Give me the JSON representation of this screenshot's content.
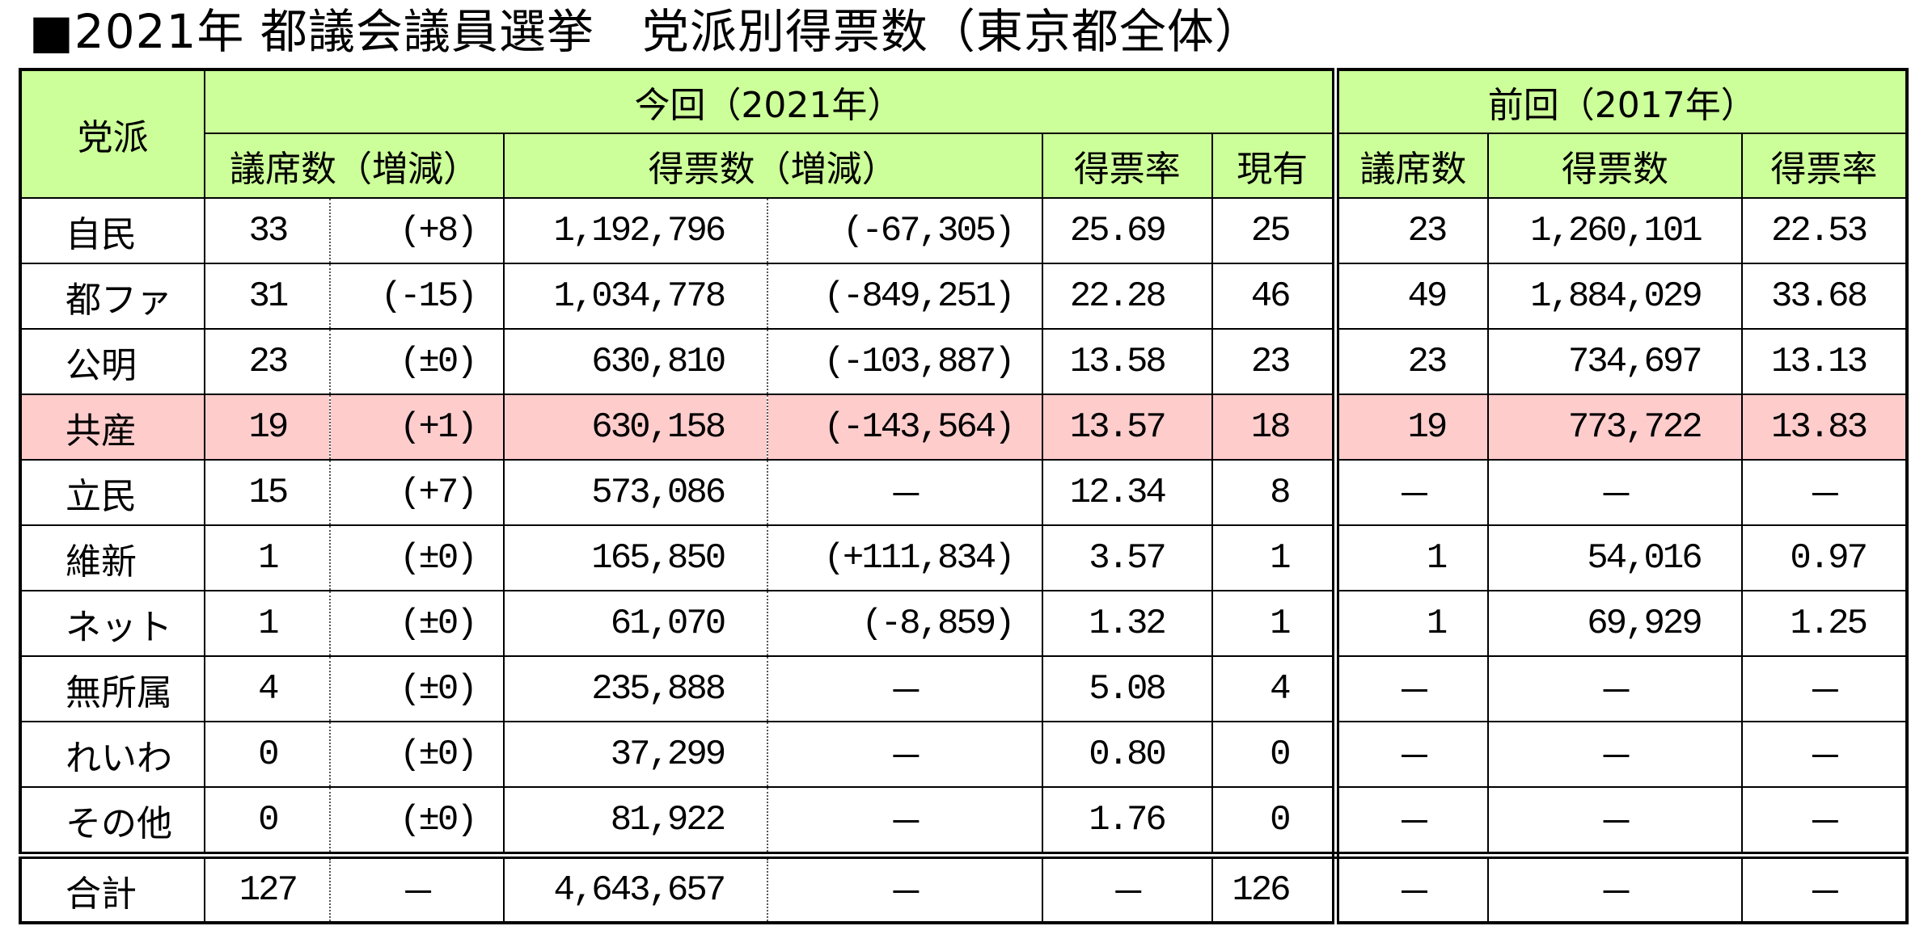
{
  "title": "■2021年 都議会議員選挙　党派別得票数（東京都全体）",
  "header": {
    "party": "党派",
    "current": "今回（2021年）",
    "previous": "前回（2017年）",
    "seats_change": "議席数（増減）",
    "votes_change": "得票数（増減）",
    "vote_share": "得票率",
    "incumbent": "現有",
    "prev_seats": "議席数",
    "prev_votes": "得票数",
    "prev_share": "得票率"
  },
  "colors": {
    "header_bg": "#ccff99",
    "highlight_bg": "#ffcccc",
    "border": "#000000"
  },
  "rows": [
    {
      "party": "自民",
      "seats": "33",
      "seats_change": "(+8)",
      "votes": "1,192,796",
      "votes_change": "(-67,305)",
      "share": "25.69",
      "incumbent": "25",
      "prev_seats": "23",
      "prev_votes": "1,260,101",
      "prev_share": "22.53",
      "highlight": false
    },
    {
      "party": "都ファ",
      "seats": "31",
      "seats_change": "(-15)",
      "votes": "1,034,778",
      "votes_change": "(-849,251)",
      "share": "22.28",
      "incumbent": "46",
      "prev_seats": "49",
      "prev_votes": "1,884,029",
      "prev_share": "33.68",
      "highlight": false
    },
    {
      "party": "公明",
      "seats": "23",
      "seats_change": "(±0)",
      "votes": "630,810",
      "votes_change": "(-103,887)",
      "share": "13.58",
      "incumbent": "23",
      "prev_seats": "23",
      "prev_votes": "734,697",
      "prev_share": "13.13",
      "highlight": false
    },
    {
      "party": "共産",
      "seats": "19",
      "seats_change": "(+1)",
      "votes": "630,158",
      "votes_change": "(-143,564)",
      "share": "13.57",
      "incumbent": "18",
      "prev_seats": "19",
      "prev_votes": "773,722",
      "prev_share": "13.83",
      "highlight": true
    },
    {
      "party": "立民",
      "seats": "15",
      "seats_change": "(+7)",
      "votes": "573,086",
      "votes_change": "－",
      "share": "12.34",
      "incumbent": "8",
      "prev_seats": "－",
      "prev_votes": "－",
      "prev_share": "－",
      "highlight": false
    },
    {
      "party": "維新",
      "seats": "1",
      "seats_change": "(±0)",
      "votes": "165,850",
      "votes_change": "(+111,834)",
      "share": "3.57",
      "incumbent": "1",
      "prev_seats": "1",
      "prev_votes": "54,016",
      "prev_share": "0.97",
      "highlight": false
    },
    {
      "party": "ネット",
      "seats": "1",
      "seats_change": "(±0)",
      "votes": "61,070",
      "votes_change": "(-8,859)",
      "share": "1.32",
      "incumbent": "1",
      "prev_seats": "1",
      "prev_votes": "69,929",
      "prev_share": "1.25",
      "highlight": false
    },
    {
      "party": "無所属",
      "seats": "4",
      "seats_change": "(±0)",
      "votes": "235,888",
      "votes_change": "－",
      "share": "5.08",
      "incumbent": "4",
      "prev_seats": "－",
      "prev_votes": "－",
      "prev_share": "－",
      "highlight": false
    },
    {
      "party": "れいわ",
      "seats": "0",
      "seats_change": "(±0)",
      "votes": "37,299",
      "votes_change": "－",
      "share": "0.80",
      "incumbent": "0",
      "prev_seats": "－",
      "prev_votes": "－",
      "prev_share": "－",
      "highlight": false
    },
    {
      "party": "その他",
      "seats": "0",
      "seats_change": "(±0)",
      "votes": "81,922",
      "votes_change": "－",
      "share": "1.76",
      "incumbent": "0",
      "prev_seats": "－",
      "prev_votes": "－",
      "prev_share": "－",
      "highlight": false
    }
  ],
  "total": {
    "party": "合計",
    "seats": "127",
    "seats_change": "－",
    "votes": "4,643,657",
    "votes_change": "－",
    "share": "－",
    "incumbent": "126",
    "prev_seats": "－",
    "prev_votes": "－",
    "prev_share": "－"
  }
}
